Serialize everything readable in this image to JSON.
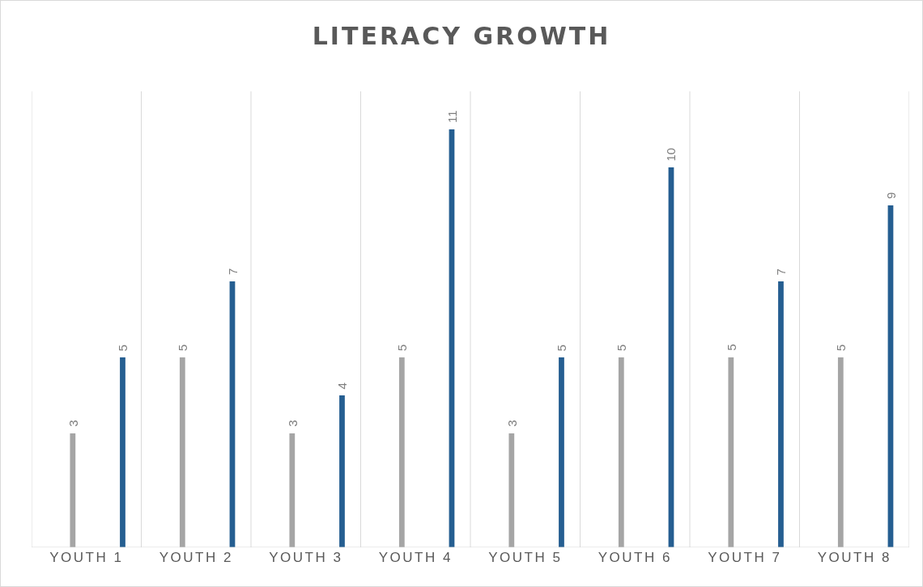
{
  "chart_data": {
    "type": "bar",
    "title": "LITERACY GROWTH",
    "categories": [
      "YOUTH 1",
      "YOUTH 2",
      "YOUTH 3",
      "YOUTH 4",
      "YOUTH 5",
      "YOUTH 6",
      "YOUTH 7",
      "YOUTH 8"
    ],
    "series": [
      {
        "color": "#a5a5a5",
        "values": [
          3,
          5,
          3,
          5,
          3,
          5,
          5,
          5
        ]
      },
      {
        "color": "#255e91",
        "values": [
          5,
          7,
          4,
          11,
          5,
          10,
          7,
          9
        ]
      }
    ],
    "ylim": [
      0,
      12
    ],
    "data_labels": true,
    "grid": "x"
  }
}
